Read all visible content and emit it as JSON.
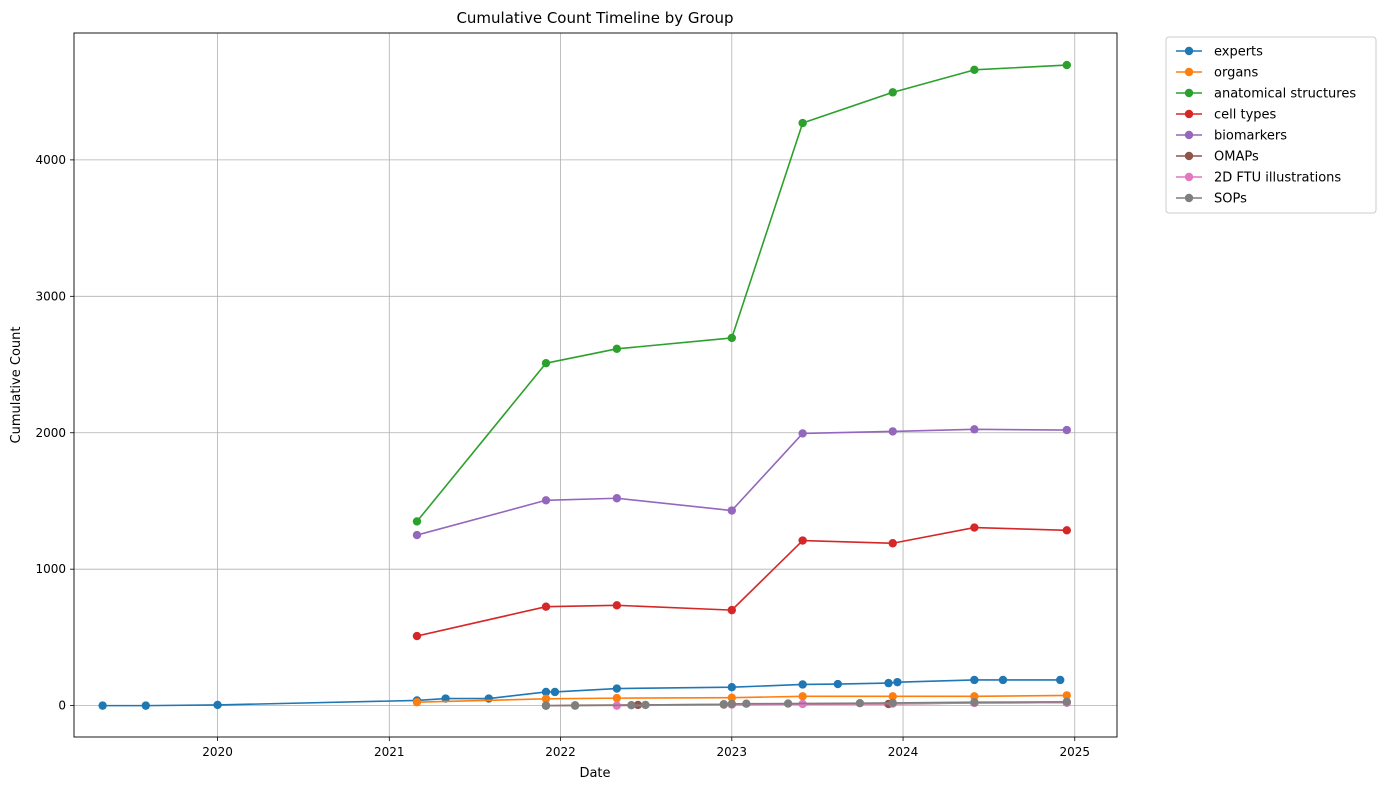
{
  "chart_data": {
    "type": "line",
    "title": "Cumulative Count Timeline by Group",
    "xlabel": "Date",
    "ylabel": "Cumulative Count",
    "x_axis_type": "date",
    "xlim": [
      "2019-03-01",
      "2025-04-01"
    ],
    "ylim": [
      -230,
      4930
    ],
    "xticks": [
      "2020",
      "2021",
      "2022",
      "2023",
      "2024",
      "2025"
    ],
    "yticks": [
      0,
      1000,
      2000,
      3000,
      4000
    ],
    "grid": true,
    "legend_position": "outside-top-right",
    "marker": "circle",
    "series": [
      {
        "name": "experts",
        "color": "#1f77b4",
        "points": [
          [
            "2019-05-01",
            0
          ],
          [
            "2019-08-01",
            0
          ],
          [
            "2020-01-01",
            5
          ],
          [
            "2021-03-01",
            38
          ],
          [
            "2021-05-01",
            52
          ],
          [
            "2021-08-01",
            52
          ],
          [
            "2021-12-01",
            100
          ],
          [
            "2021-12-20",
            100
          ],
          [
            "2022-05-01",
            125
          ],
          [
            "2023-01-01",
            135
          ],
          [
            "2023-06-01",
            155
          ],
          [
            "2023-08-15",
            158
          ],
          [
            "2023-12-01",
            165
          ],
          [
            "2023-12-20",
            172
          ],
          [
            "2024-06-01",
            188
          ],
          [
            "2024-08-01",
            188
          ],
          [
            "2024-12-01",
            188
          ]
        ]
      },
      {
        "name": "organs",
        "color": "#ff7f0e",
        "points": [
          [
            "2021-03-01",
            25
          ],
          [
            "2021-12-01",
            50
          ],
          [
            "2022-05-01",
            55
          ],
          [
            "2023-01-01",
            58
          ],
          [
            "2023-06-01",
            68
          ],
          [
            "2023-12-10",
            68
          ],
          [
            "2024-06-01",
            68
          ],
          [
            "2024-12-15",
            75
          ]
        ]
      },
      {
        "name": "anatomical structures",
        "color": "#2ca02c",
        "points": [
          [
            "2021-03-01",
            1350
          ],
          [
            "2021-12-01",
            2510
          ],
          [
            "2022-05-01",
            2615
          ],
          [
            "2023-01-01",
            2695
          ],
          [
            "2023-06-01",
            4270
          ],
          [
            "2023-12-10",
            4495
          ],
          [
            "2024-06-01",
            4660
          ],
          [
            "2024-12-15",
            4695
          ]
        ]
      },
      {
        "name": "cell types",
        "color": "#d62728",
        "points": [
          [
            "2021-03-01",
            510
          ],
          [
            "2021-12-01",
            725
          ],
          [
            "2022-05-01",
            735
          ],
          [
            "2023-01-01",
            700
          ],
          [
            "2023-06-01",
            1210
          ],
          [
            "2023-12-10",
            1190
          ],
          [
            "2024-06-01",
            1305
          ],
          [
            "2024-12-15",
            1285
          ]
        ]
      },
      {
        "name": "biomarkers",
        "color": "#9467bd",
        "points": [
          [
            "2021-03-01",
            1250
          ],
          [
            "2021-12-01",
            1505
          ],
          [
            "2022-05-01",
            1520
          ],
          [
            "2023-01-01",
            1430
          ],
          [
            "2023-06-01",
            1995
          ],
          [
            "2023-12-10",
            2010
          ],
          [
            "2024-06-01",
            2025
          ],
          [
            "2024-12-15",
            2020
          ]
        ]
      },
      {
        "name": "OMAPs",
        "color": "#8c564b",
        "points": [
          [
            "2021-12-01",
            0
          ],
          [
            "2022-02-01",
            2
          ],
          [
            "2022-06-15",
            5
          ],
          [
            "2022-12-15",
            8
          ],
          [
            "2023-01-01",
            10
          ],
          [
            "2023-12-01",
            12
          ],
          [
            "2024-06-01",
            20
          ],
          [
            "2024-12-15",
            22
          ]
        ]
      },
      {
        "name": "2D FTU illustrations",
        "color": "#e377c2",
        "points": [
          [
            "2022-05-01",
            0
          ],
          [
            "2023-01-01",
            8
          ],
          [
            "2023-06-01",
            12
          ],
          [
            "2023-12-10",
            15
          ],
          [
            "2024-06-01",
            20
          ],
          [
            "2024-12-15",
            22
          ]
        ]
      },
      {
        "name": "SOPs",
        "color": "#7f7f7f",
        "points": [
          [
            "2021-12-01",
            0
          ],
          [
            "2022-02-01",
            0
          ],
          [
            "2022-06-01",
            3
          ],
          [
            "2022-07-01",
            5
          ],
          [
            "2022-12-15",
            10
          ],
          [
            "2023-01-01",
            12
          ],
          [
            "2023-02-01",
            14
          ],
          [
            "2023-05-01",
            15
          ],
          [
            "2023-10-01",
            18
          ],
          [
            "2023-12-10",
            20
          ],
          [
            "2024-06-01",
            25
          ],
          [
            "2024-12-15",
            28
          ]
        ]
      }
    ]
  }
}
